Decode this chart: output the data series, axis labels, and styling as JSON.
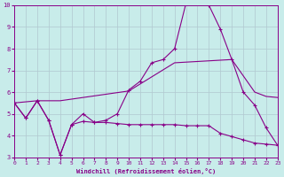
{
  "xlabel": "Windchill (Refroidissement éolien,°C)",
  "bg_color": "#c8ecea",
  "grid_color": "#b0c8d0",
  "line_color": "#880088",
  "x_range": [
    0,
    23
  ],
  "y_range": [
    3,
    10
  ],
  "yticks": [
    3,
    4,
    5,
    6,
    7,
    8,
    9,
    10
  ],
  "xticks": [
    0,
    1,
    2,
    3,
    4,
    5,
    6,
    7,
    8,
    9,
    10,
    11,
    12,
    13,
    14,
    15,
    16,
    17,
    18,
    19,
    20,
    21,
    22,
    23
  ],
  "line1_x": [
    0,
    1,
    2,
    3,
    4,
    5,
    6,
    7,
    8,
    9,
    10,
    11,
    12,
    13,
    14,
    15,
    16,
    17,
    18,
    19,
    20,
    21,
    22,
    23
  ],
  "line1_y": [
    5.5,
    4.8,
    5.6,
    4.7,
    3.1,
    4.5,
    4.65,
    4.6,
    4.6,
    4.55,
    4.5,
    4.5,
    4.5,
    4.5,
    4.5,
    4.45,
    4.45,
    4.45,
    4.1,
    3.95,
    3.8,
    3.65,
    3.6,
    3.55
  ],
  "line2_x": [
    0,
    1,
    2,
    3,
    4,
    5,
    6,
    7,
    8,
    9,
    10,
    11,
    12,
    13,
    14,
    15,
    16,
    17,
    18,
    19,
    20,
    21,
    22,
    23
  ],
  "line2_y": [
    5.5,
    4.8,
    5.6,
    4.7,
    3.1,
    4.5,
    5.0,
    4.6,
    4.7,
    5.0,
    6.1,
    6.5,
    7.35,
    7.5,
    8.0,
    10.1,
    10.15,
    10.0,
    8.9,
    7.5,
    6.0,
    5.4,
    4.35,
    3.55
  ],
  "line3_x": [
    0,
    2,
    4,
    10,
    14,
    19,
    21,
    22,
    23
  ],
  "line3_y": [
    5.5,
    5.6,
    5.6,
    6.05,
    7.35,
    7.5,
    6.0,
    5.8,
    5.75
  ]
}
